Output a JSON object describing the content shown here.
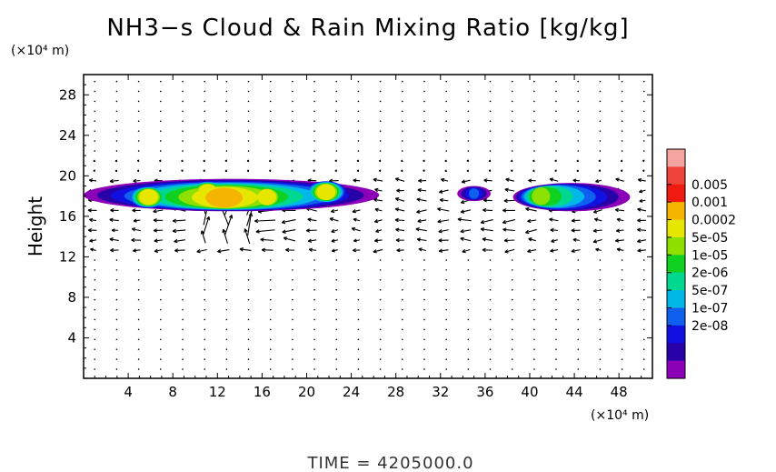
{
  "chart_data": {
    "type": "heatmap",
    "title": "NH3−s Cloud & Rain Mixing Ratio [kg/kg]",
    "xlabel": "",
    "ylabel": "Height",
    "x_unit_label": "(×10⁴ m)",
    "y_unit_label": "(×10⁴ m)",
    "xlim": [
      0,
      51
    ],
    "ylim": [
      0,
      30
    ],
    "x_ticks": [
      4,
      8,
      12,
      16,
      20,
      24,
      28,
      32,
      36,
      40,
      44,
      48
    ],
    "y_ticks": [
      4,
      8,
      12,
      16,
      20,
      24,
      28
    ],
    "footer": "TIME  =  4205000.0",
    "colorbar": {
      "labels": [
        "0.005",
        "0.001",
        "0.0002",
        "5e-05",
        "1e-05",
        "2e-06",
        "5e-07",
        "1e-07",
        "2e-08"
      ],
      "colors": [
        "#f4a5a0",
        "#f0443a",
        "#f01a10",
        "#f5b400",
        "#e6e600",
        "#8ee000",
        "#10d020",
        "#00d890",
        "#00b8e8",
        "#1060f0",
        "#1010e0",
        "#2800a8",
        "#8c00b8"
      ]
    },
    "cloud_regions": [
      {
        "x_start": 0,
        "x_end": 26.5,
        "y_bottom": 16.5,
        "y_top": 19.7,
        "max_level": "0.001",
        "peak_x": 12.5,
        "peak_y": 17.8
      },
      {
        "x_start": 33.5,
        "x_end": 36.5,
        "y_bottom": 17.5,
        "y_top": 19.0,
        "max_level": "1e-07"
      },
      {
        "x_start": 38.5,
        "x_end": 49,
        "y_bottom": 16.5,
        "y_top": 19.3,
        "max_level": "5e-05",
        "peak_x": 40.5,
        "peak_y": 18.0
      }
    ],
    "wind_vectors": "velocity field arrows, strongest near x=10-18, y=14-18"
  }
}
